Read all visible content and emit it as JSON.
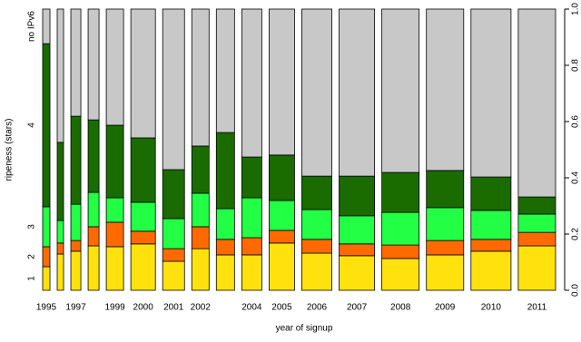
{
  "chart_data": {
    "type": "spineplot",
    "xlabel": "year of signup",
    "ylabel": "ripeness (stars)",
    "categories": [
      "1995",
      null,
      "1997",
      null,
      "1999",
      "2000",
      "2001",
      "2002",
      null,
      "2004",
      "2005",
      "2006",
      "2007",
      "2008",
      "2009",
      "2010",
      "2011"
    ],
    "widths": [
      8,
      7,
      11,
      12,
      19,
      27,
      24,
      19,
      20,
      22,
      28,
      33,
      39,
      41,
      41,
      44,
      41
    ],
    "series": [
      {
        "name": "1",
        "color": "#ffe20d",
        "values": [
          0.084,
          0.129,
          0.139,
          0.158,
          0.155,
          0.165,
          0.103,
          0.148,
          0.126,
          0.126,
          0.168,
          0.132,
          0.123,
          0.113,
          0.126,
          0.139,
          0.158
        ]
      },
      {
        "name": "2",
        "color": "#ff6a00",
        "values": [
          0.071,
          0.039,
          0.038,
          0.068,
          0.087,
          0.045,
          0.045,
          0.078,
          0.055,
          0.061,
          0.045,
          0.049,
          0.042,
          0.048,
          0.051,
          0.042,
          0.048
        ]
      },
      {
        "name": "3",
        "color": "#22ff44",
        "values": [
          0.142,
          0.08,
          0.129,
          0.122,
          0.087,
          0.103,
          0.107,
          0.119,
          0.109,
          0.142,
          0.106,
          0.106,
          0.1,
          0.116,
          0.117,
          0.103,
          0.065
        ]
      },
      {
        "name": "4",
        "color": "#1a6b00",
        "values": [
          0.58,
          0.278,
          0.313,
          0.258,
          0.258,
          0.229,
          0.174,
          0.168,
          0.271,
          0.145,
          0.162,
          0.119,
          0.141,
          0.142,
          0.132,
          0.119,
          0.061
        ]
      },
      {
        "name": "no IPv6",
        "color": "#c8c8c8",
        "values": [
          0.123,
          0.474,
          0.381,
          0.394,
          0.413,
          0.458,
          0.571,
          0.487,
          0.439,
          0.526,
          0.519,
          0.594,
          0.594,
          0.581,
          0.574,
          0.597,
          0.668
        ]
      }
    ],
    "ylim": [
      0,
      1
    ],
    "yticks": [
      {
        "value": 0,
        "label": "0.0"
      },
      0.2,
      0.4,
      0.6,
      0.8,
      {
        "value": 1,
        "label": "1.0"
      }
    ]
  }
}
